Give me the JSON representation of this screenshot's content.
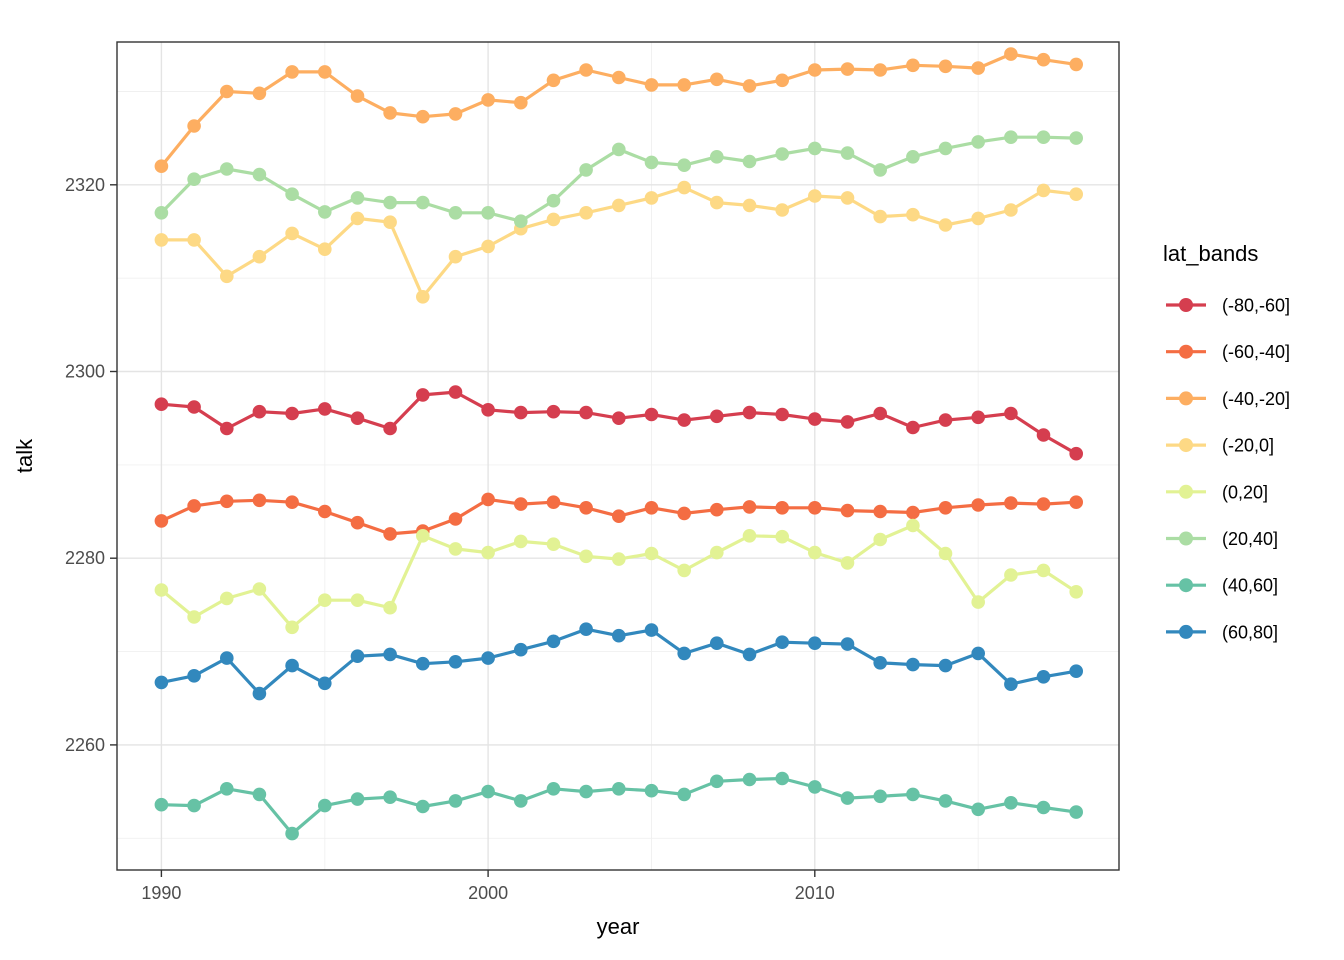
{
  "figure": {
    "background": "#ffffff",
    "panel_border_color": "#333333",
    "grid_major_color": "#e4e4e4",
    "grid_minor_color": "#f0f0f0",
    "tick_color": "#333333",
    "tick_label_color": "#4d4d4d"
  },
  "chart_data": {
    "type": "line",
    "title": "",
    "xlabel": "year",
    "ylabel": "talk",
    "legend_title": "lat_bands",
    "legend_position": "right",
    "grid": true,
    "xlim": [
      1988.64,
      2019.31
    ],
    "ylim": [
      2246.6,
      2335.3
    ],
    "x_ticks": [
      1990,
      2000,
      2010
    ],
    "x_tick_labels": [
      "1990",
      "2000",
      "2010"
    ],
    "x_minor_ticks": [
      1995,
      2005,
      2015
    ],
    "y_ticks": [
      2260,
      2280,
      2300,
      2320
    ],
    "y_tick_labels": [
      "2260",
      "2280",
      "2300",
      "2320"
    ],
    "y_minor_ticks": [
      2250,
      2270,
      2290,
      2310,
      2330
    ],
    "x": [
      1990,
      1991,
      1992,
      1993,
      1994,
      1995,
      1996,
      1997,
      1998,
      1999,
      2000,
      2001,
      2002,
      2003,
      2004,
      2005,
      2006,
      2007,
      2008,
      2009,
      2010,
      2011,
      2012,
      2013,
      2014,
      2015,
      2016,
      2017,
      2018
    ],
    "series": [
      {
        "name": "(-80,-60]",
        "color": "#d53e4f",
        "values": [
          2296.5,
          2296.2,
          2293.9,
          2295.7,
          2295.5,
          2296.0,
          2295.0,
          2293.9,
          2297.5,
          2297.8,
          2295.9,
          2295.6,
          2295.7,
          2295.6,
          2295.0,
          2295.4,
          2294.8,
          2295.2,
          2295.6,
          2295.4,
          2294.9,
          2294.6,
          2295.5,
          2294.0,
          2294.8,
          2295.1,
          2295.5,
          2293.2,
          2291.2
        ]
      },
      {
        "name": "(-60,-40]",
        "color": "#f46d43",
        "values": [
          2284.0,
          2285.6,
          2286.1,
          2286.2,
          2286.0,
          2285.0,
          2283.8,
          2282.6,
          2282.9,
          2284.2,
          2286.3,
          2285.8,
          2286.0,
          2285.4,
          2284.5,
          2285.4,
          2284.8,
          2285.2,
          2285.5,
          2285.4,
          2285.4,
          2285.1,
          2285.0,
          2284.9,
          2285.4,
          2285.7,
          2285.9,
          2285.8,
          2286.0
        ]
      },
      {
        "name": "(-40,-20]",
        "color": "#fdae61",
        "values": [
          2322.0,
          2326.3,
          2330.0,
          2329.8,
          2332.1,
          2332.1,
          2329.5,
          2327.7,
          2327.3,
          2327.6,
          2329.1,
          2328.8,
          2331.2,
          2332.3,
          2331.5,
          2330.7,
          2330.7,
          2331.3,
          2330.6,
          2331.2,
          2332.3,
          2332.4,
          2332.3,
          2332.8,
          2332.7,
          2332.5,
          2334.0,
          2333.4,
          2332.9
        ]
      },
      {
        "name": "(-20,0]",
        "color": "#fdd985",
        "values": [
          2314.1,
          2314.1,
          2310.2,
          2312.3,
          2314.8,
          2313.1,
          2316.4,
          2316.0,
          2308.0,
          2312.3,
          2313.4,
          2315.3,
          2316.3,
          2317.0,
          2317.8,
          2318.6,
          2319.7,
          2318.1,
          2317.8,
          2317.3,
          2318.8,
          2318.6,
          2316.6,
          2316.8,
          2315.7,
          2316.4,
          2317.3,
          2319.4,
          2319.0
        ]
      },
      {
        "name": "(0,20]",
        "color": "#e2f294",
        "values": [
          2276.6,
          2273.7,
          2275.7,
          2276.7,
          2272.6,
          2275.5,
          2275.5,
          2274.7,
          2282.4,
          2281.0,
          2280.6,
          2281.8,
          2281.5,
          2280.2,
          2279.9,
          2280.5,
          2278.7,
          2280.6,
          2282.4,
          2282.3,
          2280.6,
          2279.5,
          2282.0,
          2283.5,
          2280.5,
          2275.3,
          2278.2,
          2278.7,
          2276.4
        ]
      },
      {
        "name": "(20,40]",
        "color": "#abdda4",
        "values": [
          2317.0,
          2320.6,
          2321.7,
          2321.1,
          2319.0,
          2317.1,
          2318.6,
          2318.1,
          2318.1,
          2317.0,
          2317.0,
          2316.1,
          2318.3,
          2321.6,
          2323.8,
          2322.4,
          2322.1,
          2323.0,
          2322.5,
          2323.3,
          2323.9,
          2323.4,
          2321.6,
          2323.0,
          2323.9,
          2324.6,
          2325.1,
          2325.1,
          2325.0
        ]
      },
      {
        "name": "(40,60]",
        "color": "#66c2a5",
        "values": [
          2253.6,
          2253.5,
          2255.3,
          2254.7,
          2250.5,
          2253.5,
          2254.2,
          2254.4,
          2253.4,
          2254.0,
          2255.0,
          2254.0,
          2255.3,
          2255.0,
          2255.3,
          2255.1,
          2254.7,
          2256.1,
          2256.3,
          2256.4,
          2255.5,
          2254.3,
          2254.5,
          2254.7,
          2254.0,
          2253.1,
          2253.8,
          2253.3,
          2252.8
        ]
      },
      {
        "name": "(60,80]",
        "color": "#3288bd",
        "values": [
          2266.7,
          2267.4,
          2269.3,
          2265.5,
          2268.5,
          2266.6,
          2269.5,
          2269.7,
          2268.7,
          2268.9,
          2269.3,
          2270.2,
          2271.1,
          2272.4,
          2271.7,
          2272.3,
          2269.8,
          2270.9,
          2269.7,
          2271.0,
          2270.9,
          2270.8,
          2268.8,
          2268.6,
          2268.5,
          2269.8,
          2266.5,
          2267.3,
          2267.9
        ]
      }
    ]
  }
}
